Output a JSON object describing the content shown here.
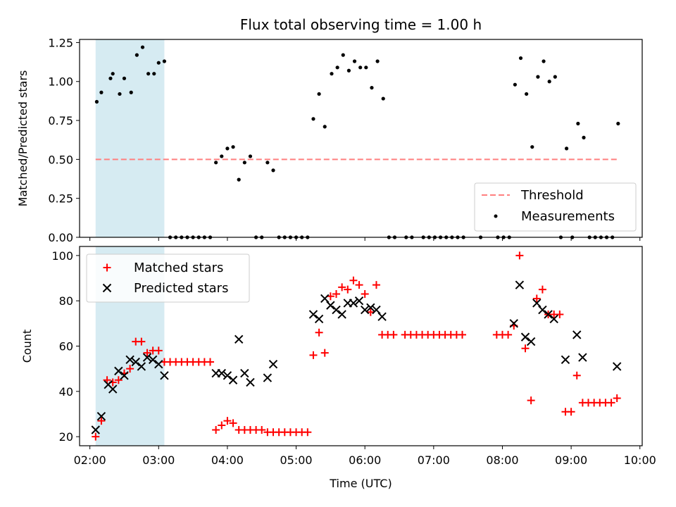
{
  "chart_data": [
    {
      "type": "scatter",
      "title": "Flux total observing time = 1.00 h",
      "xlabel": "",
      "ylabel": "Matched/Predicted stars",
      "xlim": [
        "01:51",
        "10:02"
      ],
      "ylim": [
        0,
        1.27
      ],
      "yticks": [
        "0.00",
        "0.25",
        "0.50",
        "0.75",
        "1.00",
        "1.25"
      ],
      "yticks_values": [
        0,
        0.25,
        0.5,
        0.75,
        1.0,
        1.25
      ],
      "grid": false,
      "legend_placement": "lower-right",
      "shaded_span": {
        "x_start": "02:05",
        "x_end": "03:05",
        "color": "#add8e6"
      },
      "threshold": {
        "name": "Threshold",
        "value": 0.5,
        "x_start": "02:05",
        "x_end": "09:40",
        "color": "#ff7f7f",
        "style": "dashed"
      },
      "series": [
        {
          "name": "Measurements",
          "marker": "dot",
          "color": "#000000",
          "points": [
            [
              "02:06",
              0.87
            ],
            [
              "02:10",
              0.93
            ],
            [
              "02:18",
              1.02
            ],
            [
              "02:20",
              1.05
            ],
            [
              "02:26",
              0.92
            ],
            [
              "02:30",
              1.02
            ],
            [
              "02:36",
              0.93
            ],
            [
              "02:41",
              1.17
            ],
            [
              "02:46",
              1.22
            ],
            [
              "02:51",
              1.05
            ],
            [
              "02:56",
              1.05
            ],
            [
              "03:00",
              1.12
            ],
            [
              "03:05",
              1.13
            ],
            [
              "03:10",
              0
            ],
            [
              "03:15",
              0
            ],
            [
              "03:20",
              0
            ],
            [
              "03:25",
              0
            ],
            [
              "03:30",
              0
            ],
            [
              "03:35",
              0
            ],
            [
              "03:40",
              0
            ],
            [
              "03:45",
              0
            ],
            [
              "03:50",
              0.48
            ],
            [
              "03:55",
              0.52
            ],
            [
              "04:00",
              0.57
            ],
            [
              "04:05",
              0.58
            ],
            [
              "04:10",
              0.37
            ],
            [
              "04:15",
              0.48
            ],
            [
              "04:20",
              0.52
            ],
            [
              "04:25",
              0
            ],
            [
              "04:30",
              0
            ],
            [
              "04:35",
              0.48
            ],
            [
              "04:40",
              0.43
            ],
            [
              "04:45",
              0
            ],
            [
              "04:50",
              0
            ],
            [
              "04:55",
              0
            ],
            [
              "05:00",
              0
            ],
            [
              "05:05",
              0
            ],
            [
              "05:10",
              0
            ],
            [
              "05:15",
              0.76
            ],
            [
              "05:20",
              0.92
            ],
            [
              "05:25",
              0.71
            ],
            [
              "05:31",
              1.05
            ],
            [
              "05:36",
              1.09
            ],
            [
              "05:41",
              1.17
            ],
            [
              "05:46",
              1.07
            ],
            [
              "05:51",
              1.13
            ],
            [
              "05:56",
              1.09
            ],
            [
              "06:01",
              1.09
            ],
            [
              "06:06",
              0.96
            ],
            [
              "06:11",
              1.13
            ],
            [
              "06:16",
              0.89
            ],
            [
              "06:21",
              0
            ],
            [
              "06:26",
              0
            ],
            [
              "06:36",
              0
            ],
            [
              "06:41",
              0
            ],
            [
              "06:51",
              0
            ],
            [
              "06:56",
              0
            ],
            [
              "07:01",
              0
            ],
            [
              "07:06",
              0
            ],
            [
              "07:11",
              0
            ],
            [
              "07:16",
              0
            ],
            [
              "07:21",
              0
            ],
            [
              "07:26",
              0
            ],
            [
              "07:41",
              0
            ],
            [
              "07:56",
              0
            ],
            [
              "08:01",
              0
            ],
            [
              "08:06",
              0
            ],
            [
              "08:11",
              0.98
            ],
            [
              "08:16",
              1.15
            ],
            [
              "08:21",
              0.92
            ],
            [
              "08:26",
              0.58
            ],
            [
              "08:31",
              1.03
            ],
            [
              "08:36",
              1.13
            ],
            [
              "08:41",
              1.0
            ],
            [
              "08:46",
              1.03
            ],
            [
              "08:51",
              0
            ],
            [
              "08:56",
              0.57
            ],
            [
              "09:01",
              0
            ],
            [
              "09:06",
              0.73
            ],
            [
              "09:11",
              0.64
            ],
            [
              "09:16",
              0
            ],
            [
              "09:21",
              0
            ],
            [
              "09:26",
              0
            ],
            [
              "09:31",
              0
            ],
            [
              "09:36",
              0
            ],
            [
              "09:41",
              0.73
            ]
          ]
        }
      ]
    },
    {
      "type": "scatter",
      "title": "",
      "xlabel": "Time (UTC)",
      "ylabel": "Count",
      "xlim": [
        "01:51",
        "10:02"
      ],
      "ylim": [
        16,
        104
      ],
      "yticks": [
        "20",
        "40",
        "60",
        "80",
        "100"
      ],
      "yticks_values": [
        20,
        40,
        60,
        80,
        100
      ],
      "xticks": [
        "02:00",
        "03:00",
        "04:00",
        "05:00",
        "06:00",
        "07:00",
        "08:00",
        "09:00",
        "10:00"
      ],
      "grid": false,
      "legend_placement": "upper-left",
      "shaded_span": {
        "x_start": "02:05",
        "x_end": "03:05",
        "color": "#add8e6"
      },
      "series": [
        {
          "name": "Matched stars",
          "marker": "plus",
          "color": "#ff0000",
          "points": [
            [
              "02:05",
              20
            ],
            [
              "02:10",
              27
            ],
            [
              "02:15",
              45
            ],
            [
              "02:20",
              44
            ],
            [
              "02:25",
              45
            ],
            [
              "02:30",
              48
            ],
            [
              "02:35",
              50
            ],
            [
              "02:40",
              62
            ],
            [
              "02:45",
              62
            ],
            [
              "02:50",
              57
            ],
            [
              "02:55",
              58
            ],
            [
              "03:00",
              58
            ],
            [
              "03:05",
              53
            ],
            [
              "03:10",
              53
            ],
            [
              "03:15",
              53
            ],
            [
              "03:20",
              53
            ],
            [
              "03:25",
              53
            ],
            [
              "03:30",
              53
            ],
            [
              "03:35",
              53
            ],
            [
              "03:40",
              53
            ],
            [
              "03:45",
              53
            ],
            [
              "03:50",
              23
            ],
            [
              "03:55",
              25
            ],
            [
              "04:00",
              27
            ],
            [
              "04:05",
              26
            ],
            [
              "04:10",
              23
            ],
            [
              "04:15",
              23
            ],
            [
              "04:20",
              23
            ],
            [
              "04:25",
              23
            ],
            [
              "04:30",
              23
            ],
            [
              "04:35",
              22
            ],
            [
              "04:40",
              22
            ],
            [
              "04:45",
              22
            ],
            [
              "04:50",
              22
            ],
            [
              "04:55",
              22
            ],
            [
              "05:00",
              22
            ],
            [
              "05:05",
              22
            ],
            [
              "05:10",
              22
            ],
            [
              "05:15",
              56
            ],
            [
              "05:20",
              66
            ],
            [
              "05:25",
              57
            ],
            [
              "05:30",
              82
            ],
            [
              "05:35",
              83
            ],
            [
              "05:40",
              86
            ],
            [
              "05:45",
              85
            ],
            [
              "05:50",
              89
            ],
            [
              "05:55",
              87
            ],
            [
              "06:00",
              83
            ],
            [
              "06:05",
              75
            ],
            [
              "06:10",
              87
            ],
            [
              "06:15",
              65
            ],
            [
              "06:20",
              65
            ],
            [
              "06:25",
              65
            ],
            [
              "06:35",
              65
            ],
            [
              "06:40",
              65
            ],
            [
              "06:45",
              65
            ],
            [
              "06:50",
              65
            ],
            [
              "06:55",
              65
            ],
            [
              "07:00",
              65
            ],
            [
              "07:05",
              65
            ],
            [
              "07:10",
              65
            ],
            [
              "07:15",
              65
            ],
            [
              "07:20",
              65
            ],
            [
              "07:25",
              65
            ],
            [
              "07:55",
              65
            ],
            [
              "08:00",
              65
            ],
            [
              "08:05",
              65
            ],
            [
              "08:10",
              69
            ],
            [
              "08:15",
              100
            ],
            [
              "08:20",
              59
            ],
            [
              "08:25",
              36
            ],
            [
              "08:30",
              81
            ],
            [
              "08:35",
              85
            ],
            [
              "08:40",
              74
            ],
            [
              "08:45",
              74
            ],
            [
              "08:50",
              74
            ],
            [
              "08:55",
              31
            ],
            [
              "09:00",
              31
            ],
            [
              "09:05",
              47
            ],
            [
              "09:10",
              35
            ],
            [
              "09:15",
              35
            ],
            [
              "09:20",
              35
            ],
            [
              "09:25",
              35
            ],
            [
              "09:30",
              35
            ],
            [
              "09:35",
              35
            ],
            [
              "09:40",
              37
            ]
          ]
        },
        {
          "name": "Predicted stars",
          "marker": "x",
          "color": "#000000",
          "points": [
            [
              "02:05",
              23
            ],
            [
              "02:10",
              29
            ],
            [
              "02:16",
              43
            ],
            [
              "02:20",
              41
            ],
            [
              "02:25",
              49
            ],
            [
              "02:30",
              47
            ],
            [
              "02:35",
              54
            ],
            [
              "02:40",
              53
            ],
            [
              "02:45",
              51
            ],
            [
              "02:50",
              55
            ],
            [
              "02:55",
              54
            ],
            [
              "03:00",
              52
            ],
            [
              "03:05",
              47
            ],
            [
              "03:50",
              48
            ],
            [
              "03:55",
              48
            ],
            [
              "04:00",
              47
            ],
            [
              "04:05",
              45
            ],
            [
              "04:10",
              63
            ],
            [
              "04:15",
              48
            ],
            [
              "04:20",
              44
            ],
            [
              "04:35",
              46
            ],
            [
              "04:40",
              52
            ],
            [
              "05:15",
              74
            ],
            [
              "05:20",
              72
            ],
            [
              "05:25",
              81
            ],
            [
              "05:30",
              78
            ],
            [
              "05:35",
              76
            ],
            [
              "05:40",
              74
            ],
            [
              "05:45",
              79
            ],
            [
              "05:50",
              79
            ],
            [
              "05:55",
              80
            ],
            [
              "06:00",
              76
            ],
            [
              "06:05",
              77
            ],
            [
              "06:10",
              76
            ],
            [
              "06:15",
              73
            ],
            [
              "08:10",
              70
            ],
            [
              "08:15",
              87
            ],
            [
              "08:20",
              64
            ],
            [
              "08:25",
              62
            ],
            [
              "08:30",
              79
            ],
            [
              "08:35",
              76
            ],
            [
              "08:40",
              74
            ],
            [
              "08:45",
              72
            ],
            [
              "08:55",
              54
            ],
            [
              "09:05",
              65
            ],
            [
              "09:10",
              55
            ],
            [
              "09:40",
              51
            ]
          ]
        }
      ]
    }
  ]
}
